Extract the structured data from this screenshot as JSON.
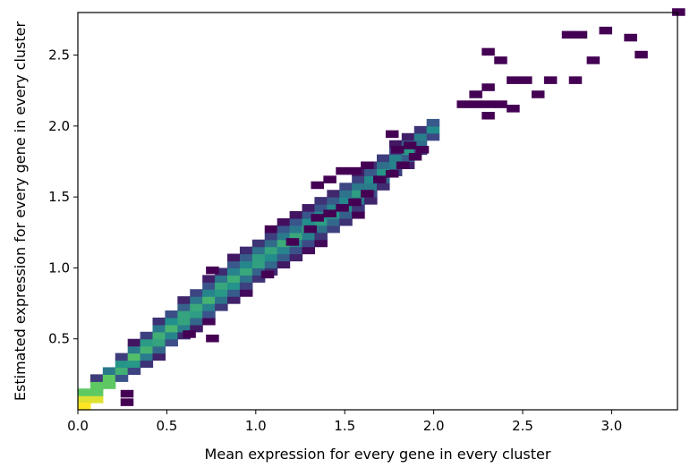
{
  "chart_data": {
    "type": "heatmap",
    "title": "",
    "xlabel": "Mean expression for every gene in every cluster",
    "ylabel": "Estimated expression for every gene in every cluster",
    "xlim": [
      0.0,
      3.37
    ],
    "ylim": [
      0.0,
      2.8
    ],
    "xticks": [
      0.0,
      0.5,
      1.0,
      1.5,
      2.0,
      2.5,
      3.0
    ],
    "xtick_labels": [
      "0.0",
      "0.5",
      "1.0",
      "1.5",
      "2.0",
      "2.5",
      "3.0"
    ],
    "yticks": [
      0.5,
      1.0,
      1.5,
      2.0,
      2.5
    ],
    "ytick_labels": [
      "0.5",
      "1.0",
      "1.5",
      "2.0",
      "2.5"
    ],
    "grid": false,
    "colormap": "viridis",
    "bin_width": 0.07,
    "bin_height": 0.05,
    "sparse_bins": [
      [
        2.27,
        2.5
      ],
      [
        2.34,
        2.44
      ],
      [
        2.41,
        2.3
      ],
      [
        2.55,
        2.2
      ],
      [
        2.48,
        2.3
      ],
      [
        2.62,
        2.3
      ],
      [
        2.76,
        2.3
      ],
      [
        2.79,
        2.62
      ],
      [
        2.72,
        2.62
      ],
      [
        2.86,
        2.44
      ],
      [
        2.93,
        2.65
      ],
      [
        3.07,
        2.6
      ],
      [
        3.13,
        2.48
      ],
      [
        3.34,
        2.78
      ],
      [
        2.27,
        2.25
      ],
      [
        2.2,
        2.2
      ],
      [
        2.27,
        2.13
      ],
      [
        2.13,
        2.13
      ],
      [
        2.2,
        2.13
      ],
      [
        2.34,
        2.13
      ],
      [
        2.41,
        2.1
      ],
      [
        2.27,
        2.05
      ],
      [
        1.73,
        1.92
      ],
      [
        1.76,
        1.81
      ],
      [
        1.83,
        1.84
      ],
      [
        1.9,
        1.81
      ],
      [
        1.86,
        1.76
      ],
      [
        1.79,
        1.7
      ],
      [
        1.73,
        1.64
      ],
      [
        1.59,
        1.7
      ],
      [
        1.52,
        1.66
      ],
      [
        1.45,
        1.66
      ],
      [
        1.38,
        1.6
      ],
      [
        1.31,
        1.56
      ],
      [
        1.66,
        1.6
      ],
      [
        1.59,
        1.5
      ],
      [
        1.52,
        1.44
      ],
      [
        1.45,
        1.4
      ],
      [
        1.38,
        1.36
      ],
      [
        1.31,
        1.33
      ],
      [
        1.27,
        1.25
      ],
      [
        1.17,
        1.16
      ],
      [
        1.03,
        0.93
      ],
      [
        0.72,
        0.96
      ],
      [
        0.72,
        0.48
      ],
      [
        0.59,
        0.51
      ],
      [
        0.24,
        0.03
      ],
      [
        0.24,
        0.09
      ]
    ],
    "dense_band": {
      "x_range": [
        0.0,
        2.0
      ],
      "segments": [
        {
          "x": 0.0,
          "y_center": 0.05,
          "half_height": 0.07
        },
        {
          "x": 0.5,
          "y_center": 0.55,
          "half_height": 0.14
        },
        {
          "x": 1.0,
          "y_center": 1.04,
          "half_height": 0.16
        },
        {
          "x": 1.5,
          "y_center": 1.45,
          "half_height": 0.16
        },
        {
          "x": 2.0,
          "y_center": 1.98,
          "half_height": 0.09
        }
      ]
    },
    "peak_count_bin": [
      0.0,
      0.0
    ]
  }
}
